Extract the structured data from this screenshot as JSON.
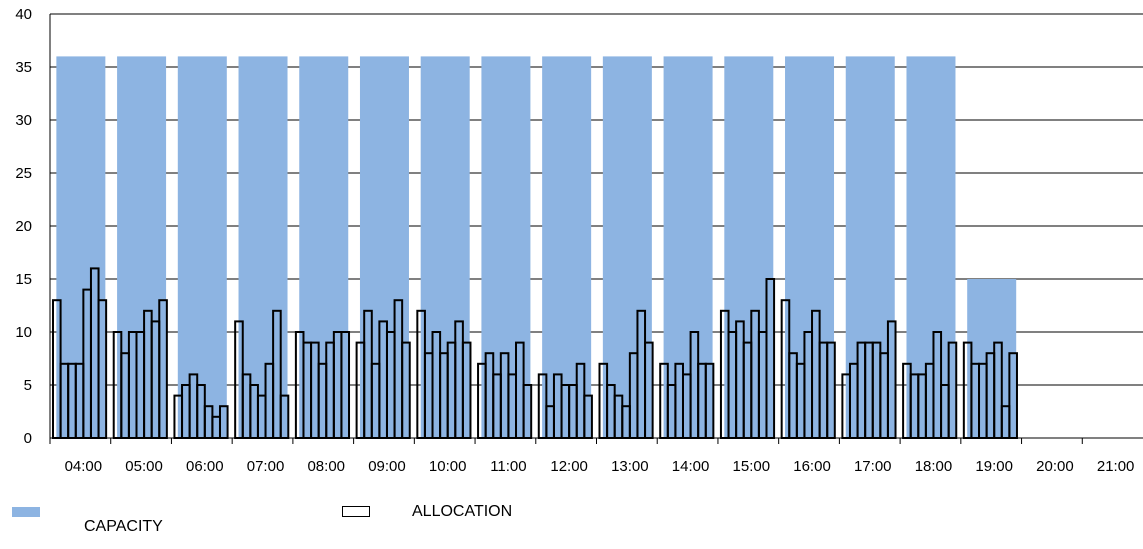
{
  "chart_data": {
    "type": "bar",
    "ylim": [
      0,
      40
    ],
    "yticks": [
      0,
      5,
      10,
      15,
      20,
      25,
      30,
      35,
      40
    ],
    "categories": [
      "04:00",
      "05:00",
      "06:00",
      "07:00",
      "08:00",
      "09:00",
      "10:00",
      "11:00",
      "12:00",
      "13:00",
      "14:00",
      "15:00",
      "16:00",
      "17:00",
      "18:00",
      "19:00",
      "20:00",
      "21:00"
    ],
    "grid": true,
    "legend_position": "bottom-left",
    "series": [
      {
        "name": "CAPACITY",
        "color": "#8db4e2",
        "values": [
          36,
          36,
          36,
          36,
          36,
          36,
          36,
          36,
          36,
          36,
          36,
          36,
          36,
          36,
          36,
          15,
          0,
          0
        ]
      },
      {
        "name": "ALLOCATION",
        "color": "#ffffff",
        "stroke": "#000000",
        "sub_bars_per_hour": 8,
        "values": [
          [
            13,
            7,
            7,
            7,
            14,
            16,
            13,
            0
          ],
          [
            10,
            8,
            10,
            10,
            12,
            11,
            13,
            0
          ],
          [
            4,
            5,
            6,
            5,
            3,
            2,
            3,
            0
          ],
          [
            11,
            6,
            5,
            4,
            7,
            12,
            4,
            0
          ],
          [
            10,
            9,
            9,
            7,
            9,
            10,
            10,
            0
          ],
          [
            9,
            12,
            7,
            11,
            10,
            13,
            9,
            0
          ],
          [
            12,
            8,
            10,
            8,
            9,
            11,
            9,
            0
          ],
          [
            7,
            8,
            6,
            8,
            6,
            9,
            5,
            0
          ],
          [
            6,
            3,
            6,
            5,
            5,
            7,
            4,
            0
          ],
          [
            7,
            5,
            4,
            3,
            8,
            12,
            9,
            0
          ],
          [
            7,
            5,
            7,
            6,
            10,
            7,
            7,
            0
          ],
          [
            12,
            10,
            11,
            9,
            12,
            10,
            15,
            0
          ],
          [
            13,
            8,
            7,
            10,
            12,
            9,
            9,
            0
          ],
          [
            6,
            7,
            9,
            9,
            9,
            8,
            11,
            0
          ],
          [
            7,
            6,
            6,
            7,
            10,
            5,
            9,
            0
          ],
          [
            9,
            7,
            7,
            8,
            9,
            3,
            8,
            0
          ],
          [
            0,
            0,
            0,
            0,
            0,
            0,
            0,
            0
          ],
          [
            0,
            0,
            0,
            0,
            0,
            0,
            0,
            0
          ]
        ]
      }
    ]
  },
  "legend": {
    "capacity_label": "CAPACITY",
    "allocation_label": "ALLOCATION"
  }
}
